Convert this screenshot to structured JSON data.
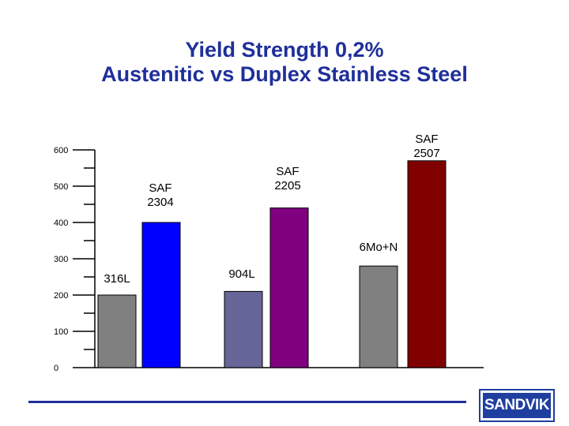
{
  "chart_data": {
    "type": "bar",
    "title_lines": [
      "Yield Strength 0,2%",
      "Austenitic vs Duplex Stainless Steel"
    ],
    "categories": [
      "316L",
      "SAF 2304",
      "904L",
      "SAF 2205",
      "6Mo+N",
      "SAF 2507"
    ],
    "category_label_lines": [
      [
        "316L"
      ],
      [
        "SAF",
        "2304"
      ],
      [
        "904L"
      ],
      [
        "SAF",
        "2205"
      ],
      [
        "6Mo+N"
      ],
      [
        "SAF",
        "2507"
      ]
    ],
    "values": [
      200,
      400,
      210,
      440,
      280,
      570
    ],
    "bar_colors": [
      "#808080",
      "#0000ff",
      "#666699",
      "#800080",
      "#808080",
      "#800000"
    ],
    "yticks": [
      0,
      100,
      200,
      300,
      400,
      500,
      600
    ],
    "ylim": [
      0,
      600
    ],
    "grid": false
  },
  "logo_text": "SANDVIK"
}
